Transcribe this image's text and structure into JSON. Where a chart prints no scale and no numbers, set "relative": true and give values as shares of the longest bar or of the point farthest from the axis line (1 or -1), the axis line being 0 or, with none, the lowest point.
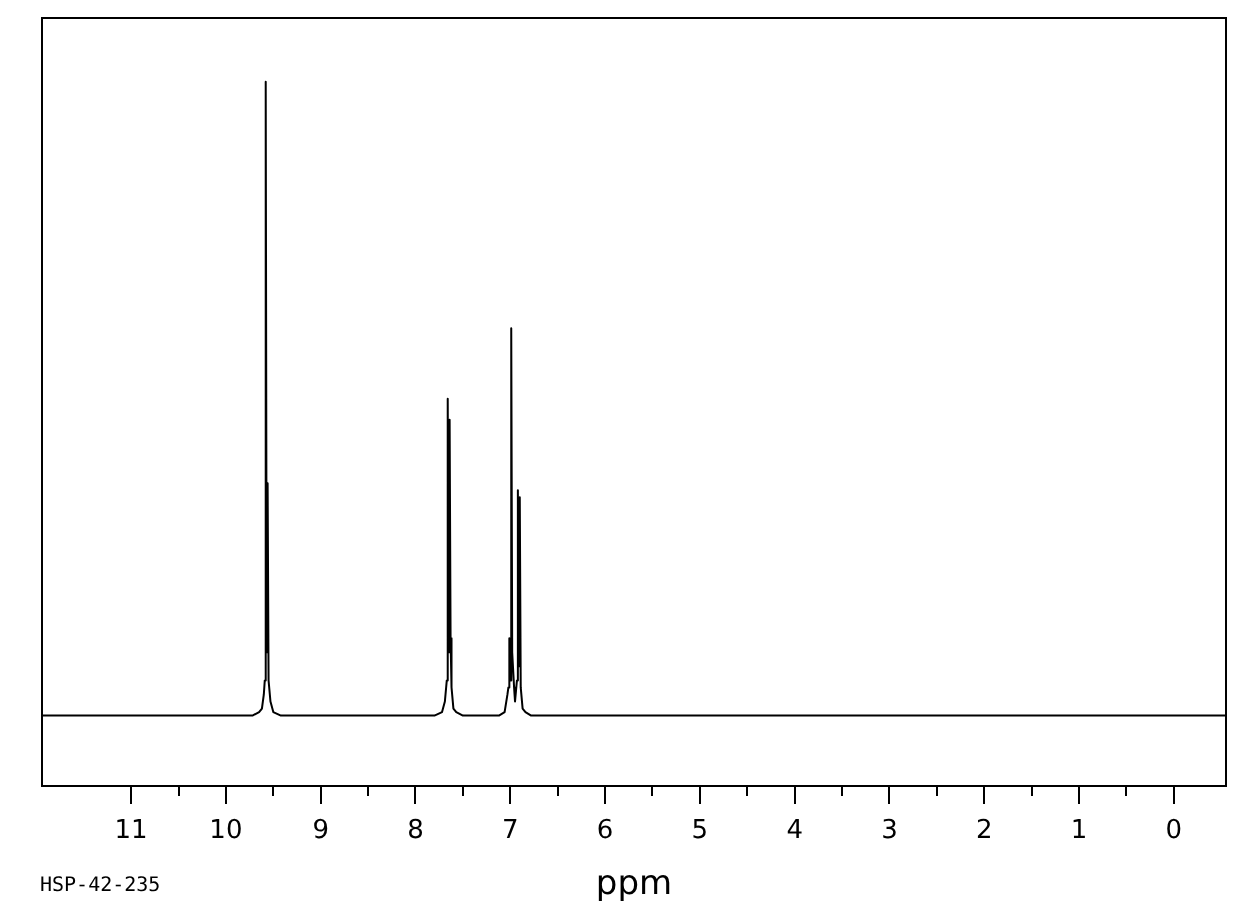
{
  "chart_data": {
    "type": "line",
    "xlabel": "ppm",
    "annotations": [
      "HSP-42-235"
    ],
    "x": [
      11.94,
      9.72,
      9.65,
      9.62,
      9.6,
      9.59,
      9.58,
      9.57,
      9.56,
      9.55,
      9.53,
      9.5,
      9.42,
      7.8,
      7.72,
      7.69,
      7.67,
      7.66,
      7.65,
      7.64,
      7.63,
      7.62,
      7.6,
      7.57,
      7.5,
      7.12,
      7.06,
      7.03,
      7.02,
      7.01,
      7.0,
      6.99,
      6.98,
      6.96,
      6.95,
      6.93,
      6.92,
      6.91,
      6.9,
      6.89,
      6.87,
      6.84,
      6.78,
      -0.55
    ],
    "values": [
      0.1,
      0.1,
      0.105,
      0.11,
      0.13,
      0.15,
      1.0,
      0.19,
      0.43,
      0.15,
      0.12,
      0.105,
      0.1,
      0.1,
      0.105,
      0.12,
      0.15,
      0.55,
      0.19,
      0.52,
      0.21,
      0.14,
      0.11,
      0.105,
      0.1,
      0.1,
      0.105,
      0.13,
      0.14,
      0.21,
      0.15,
      0.65,
      0.19,
      0.14,
      0.12,
      0.15,
      0.42,
      0.17,
      0.41,
      0.14,
      0.11,
      0.105,
      0.1,
      0.1
    ],
    "color": "#000000",
    "relative": true,
    "marker": "none",
    "grid": false,
    "legend": false,
    "xlim": [
      11.94,
      -0.55
    ],
    "xticks": [
      11,
      {
        "value": 10.5,
        "label": null
      },
      10,
      {
        "value": 9.5,
        "label": null
      },
      9,
      {
        "value": 8.5,
        "label": null
      },
      8,
      {
        "value": 7.5,
        "label": null
      },
      7,
      {
        "value": 6.5,
        "label": null
      },
      6,
      {
        "value": 5.5,
        "label": null
      },
      5,
      {
        "value": 4.5,
        "label": null
      },
      4,
      {
        "value": 3.5,
        "label": null
      },
      3,
      {
        "value": 2.5,
        "label": null
      },
      2,
      {
        "value": 1.5,
        "label": null
      },
      1,
      {
        "value": 0.5,
        "label": null
      },
      0
    ]
  }
}
